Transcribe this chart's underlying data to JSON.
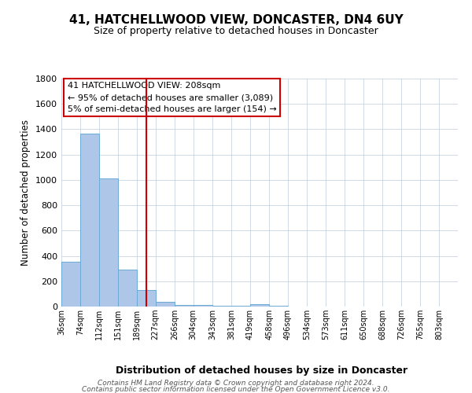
{
  "title": "41, HATCHELLWOOD VIEW, DONCASTER, DN4 6UY",
  "subtitle": "Size of property relative to detached houses in Doncaster",
  "xlabel": "Distribution of detached houses by size in Doncaster",
  "ylabel": "Number of detached properties",
  "bar_labels": [
    "36sqm",
    "74sqm",
    "112sqm",
    "151sqm",
    "189sqm",
    "227sqm",
    "266sqm",
    "304sqm",
    "343sqm",
    "381sqm",
    "419sqm",
    "458sqm",
    "496sqm",
    "534sqm",
    "573sqm",
    "611sqm",
    "650sqm",
    "688sqm",
    "726sqm",
    "765sqm",
    "803sqm"
  ],
  "bar_values": [
    355,
    1365,
    1010,
    290,
    130,
    40,
    15,
    10,
    5,
    5,
    20,
    5,
    0,
    0,
    0,
    0,
    0,
    0,
    0,
    0,
    0
  ],
  "bar_edges": [
    36,
    74,
    112,
    151,
    189,
    227,
    266,
    304,
    343,
    381,
    419,
    458,
    496,
    534,
    573,
    611,
    650,
    688,
    726,
    765,
    803,
    841
  ],
  "property_line_x": 208,
  "bar_color": "#aec6e8",
  "bar_edge_color": "#6aaad4",
  "line_color": "#cc0000",
  "ylim": [
    0,
    1800
  ],
  "annotation_line1": "41 HATCHELLWOOD VIEW: 208sqm",
  "annotation_line2": "← 95% of detached houses are smaller (3,089)",
  "annotation_line3": "5% of semi-detached houses are larger (154) →",
  "footer_line1": "Contains HM Land Registry data © Crown copyright and database right 2024.",
  "footer_line2": "Contains public sector information licensed under the Open Government Licence v3.0.",
  "background_color": "#ffffff",
  "grid_color": "#c8d4e0"
}
